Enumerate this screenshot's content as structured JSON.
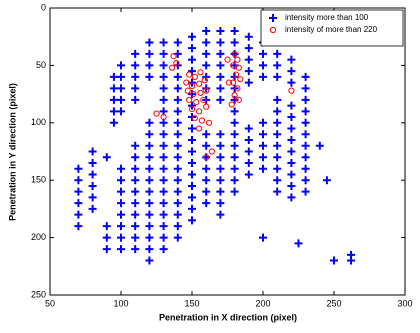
{
  "chart_data": {
    "type": "scatter",
    "xlabel": "Penetration in X direction (pixel)",
    "ylabel": "Penetration in Y direction (pixel)",
    "xlim": [
      50,
      300
    ],
    "xticks": [
      50,
      100,
      150,
      200,
      250,
      300
    ],
    "ylim": [
      0,
      250
    ],
    "yticks": [
      0,
      50,
      100,
      150,
      200,
      250
    ],
    "y_reversed": true,
    "grid": false,
    "legend": "upper right",
    "series": [
      {
        "name": "intensity more than 100",
        "color": "#0000ff",
        "marker": "plus",
        "x": [
          70,
          70,
          70,
          70,
          70,
          70,
          80,
          80,
          80,
          80,
          80,
          80,
          90,
          90,
          90,
          90,
          95,
          95,
          95,
          95,
          95,
          100,
          100,
          100,
          100,
          100,
          100,
          100,
          100,
          100,
          100,
          100,
          100,
          100,
          110,
          110,
          110,
          110,
          110,
          110,
          110,
          110,
          110,
          110,
          110,
          110,
          110,
          110,
          110,
          120,
          120,
          120,
          120,
          120,
          120,
          120,
          120,
          120,
          120,
          120,
          120,
          120,
          120,
          120,
          120,
          120,
          130,
          130,
          130,
          130,
          130,
          130,
          130,
          130,
          130,
          130,
          130,
          130,
          130,
          130,
          130,
          130,
          130,
          130,
          130,
          140,
          140,
          140,
          140,
          140,
          140,
          140,
          140,
          140,
          140,
          140,
          140,
          140,
          140,
          140,
          140,
          140,
          140,
          150,
          150,
          150,
          150,
          150,
          150,
          150,
          150,
          150,
          150,
          150,
          150,
          150,
          150,
          150,
          150,
          150,
          160,
          160,
          160,
          160,
          160,
          160,
          160,
          160,
          160,
          160,
          160,
          160,
          160,
          160,
          170,
          170,
          170,
          170,
          170,
          170,
          170,
          170,
          170,
          170,
          170,
          170,
          170,
          170,
          170,
          180,
          180,
          180,
          180,
          180,
          180,
          180,
          180,
          180,
          180,
          180,
          180,
          180,
          180,
          180,
          190,
          190,
          190,
          190,
          190,
          190,
          190,
          190,
          190,
          190,
          200,
          200,
          200,
          200,
          200,
          200,
          200,
          200,
          200,
          210,
          210,
          210,
          210,
          210,
          210,
          210,
          210,
          210,
          210,
          210,
          210,
          220,
          220,
          220,
          220,
          220,
          220,
          220,
          220,
          220,
          220,
          220,
          220,
          230,
          230,
          230,
          230,
          230,
          230,
          230,
          230,
          230,
          230,
          230,
          200,
          225,
          250,
          262,
          262,
          240,
          245
        ],
        "values": [
          140,
          150,
          160,
          170,
          180,
          190,
          125,
          135,
          145,
          155,
          165,
          175,
          130,
          190,
          200,
          210,
          60,
          70,
          80,
          90,
          100,
          50,
          60,
          70,
          80,
          90,
          140,
          150,
          160,
          170,
          180,
          190,
          200,
          210,
          40,
          50,
          60,
          70,
          80,
          120,
          130,
          140,
          150,
          160,
          170,
          180,
          190,
          200,
          210,
          30,
          40,
          50,
          60,
          100,
          110,
          120,
          130,
          140,
          150,
          160,
          170,
          180,
          190,
          200,
          210,
          220,
          30,
          40,
          50,
          60,
          70,
          80,
          90,
          100,
          110,
          120,
          130,
          140,
          150,
          160,
          170,
          180,
          190,
          200,
          210,
          30,
          40,
          50,
          60,
          70,
          80,
          90,
          100,
          110,
          120,
          130,
          140,
          150,
          160,
          170,
          180,
          190,
          200,
          25,
          35,
          45,
          55,
          65,
          75,
          85,
          95,
          105,
          115,
          125,
          135,
          145,
          155,
          165,
          175,
          185,
          20,
          30,
          40,
          50,
          60,
          70,
          80,
          110,
          120,
          130,
          140,
          150,
          160,
          170,
          20,
          30,
          40,
          50,
          60,
          70,
          80,
          110,
          120,
          130,
          140,
          150,
          160,
          170,
          180,
          20,
          30,
          40,
          50,
          60,
          70,
          80,
          90,
          100,
          110,
          120,
          130,
          140,
          150,
          160,
          25,
          35,
          45,
          55,
          65,
          105,
          115,
          125,
          135,
          145,
          30,
          40,
          50,
          60,
          100,
          110,
          120,
          130,
          140,
          40,
          50,
          60,
          80,
          90,
          100,
          110,
          120,
          130,
          140,
          150,
          160,
          45,
          55,
          65,
          85,
          95,
          105,
          115,
          125,
          135,
          145,
          155,
          165,
          60,
          70,
          80,
          90,
          100,
          110,
          120,
          130,
          140,
          150,
          160,
          200,
          205,
          220,
          215,
          220,
          120,
          150
        ]
      },
      {
        "name": "intensity of more than 220",
        "color": "#ff0000",
        "marker": "circle",
        "x": [
          137,
          139,
          136,
          148,
          152,
          156,
          146,
          150,
          155,
          159,
          147,
          151,
          156,
          160,
          148,
          153,
          158,
          150,
          155,
          160,
          152,
          157,
          155,
          162,
          180,
          182,
          179,
          183,
          181,
          184,
          179,
          182,
          180,
          183,
          178,
          130,
          125,
          160,
          164,
          220,
          175,
          176
        ],
        "values": [
          42,
          48,
          52,
          58,
          60,
          56,
          65,
          68,
          66,
          63,
          72,
          75,
          74,
          72,
          80,
          82,
          80,
          88,
          90,
          86,
          96,
          98,
          105,
          100,
          40,
          45,
          50,
          52,
          58,
          62,
          65,
          70,
          76,
          80,
          84,
          95,
          92,
          130,
          125,
          72,
          45,
          65
        ]
      }
    ]
  }
}
